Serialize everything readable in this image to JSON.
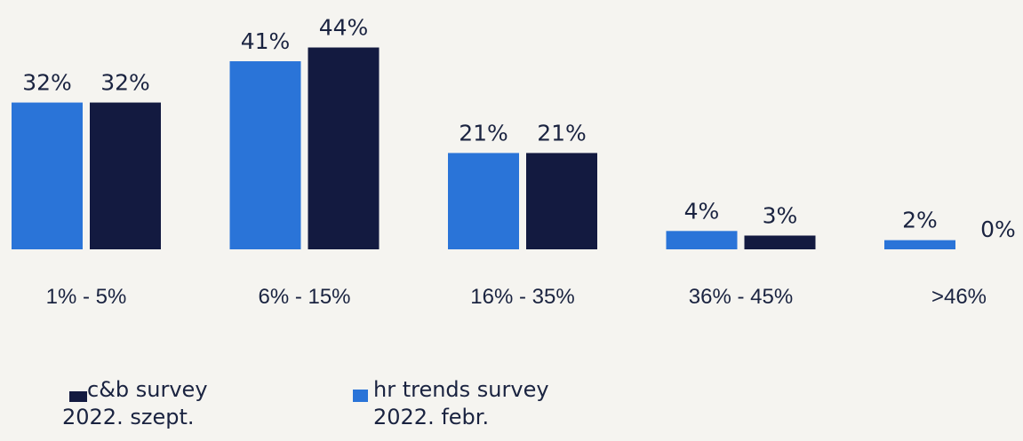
{
  "chart_data": {
    "type": "bar",
    "categories": [
      "1% - 5%",
      "6% - 15%",
      "16% - 35%",
      "36% - 45%",
      ">46%"
    ],
    "series": [
      {
        "name": "c&b survey\n2022. szept.",
        "color": "#131a40",
        "values": [
          32,
          44,
          21,
          3,
          0
        ],
        "value_labels": [
          "32%",
          "44%",
          "21%",
          "3%",
          "0%"
        ]
      },
      {
        "name": "hr trends survey\n2022. febr.",
        "color": "#2a74d8",
        "values": [
          32,
          41,
          21,
          4,
          2
        ],
        "value_labels": [
          "32%",
          "41%",
          "21%",
          "4%",
          "2%"
        ]
      }
    ]
  }
}
